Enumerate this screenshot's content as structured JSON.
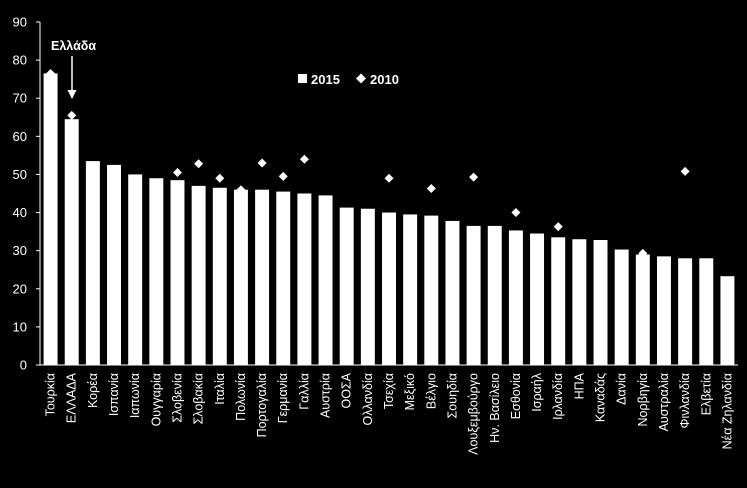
{
  "chart_data": {
    "type": "bar",
    "categories": [
      "Τουρκία",
      "ΕΛΛΑΔΑ",
      "Κορέα",
      "Ισπανία",
      "Ιαπωνία",
      "Ουγγαρία",
      "Σλοβενία",
      "Σλοβακία",
      "Ιταλία",
      "Πολωνία",
      "Πορτογαλία",
      "Γερμανία",
      "Γαλλία",
      "Αυστρία",
      "ΟΟΣΑ",
      "Ολλανδία",
      "Τσεχία",
      "Μεξικό",
      "Βέλγιο",
      "Σουηδία",
      "Λουξεμβούργο",
      "Ην. Βασίλειο",
      "Εσθονία",
      "Ισραήλ",
      "Ιρλανδία",
      "ΗΠΑ",
      "Καναδάς",
      "Δανία",
      "Νορβηγία",
      "Αυστραλία",
      "Φινλανδία",
      "Ελβετία",
      "Νέα Ζηλανδία"
    ],
    "series": [
      {
        "name": "2015",
        "kind": "bar",
        "values": [
          76.5,
          64.5,
          53.5,
          52.5,
          50,
          49,
          48.5,
          47,
          46.5,
          46,
          46,
          45.5,
          45,
          44.5,
          41.3,
          41,
          40,
          39.5,
          39.2,
          37.8,
          36.5,
          36.5,
          35.3,
          34.5,
          33.5,
          33,
          32.8,
          30.3,
          29,
          28.5,
          28,
          28,
          23.3
        ]
      },
      {
        "name": "2010",
        "kind": "marker",
        "values": [
          76.5,
          65.5,
          null,
          null,
          null,
          null,
          50.5,
          52.8,
          49,
          46,
          53,
          49.5,
          54,
          null,
          null,
          null,
          49,
          null,
          46.3,
          null,
          49.3,
          null,
          40,
          null,
          36.3,
          null,
          null,
          null,
          29.3,
          null,
          50.8,
          null,
          null
        ]
      }
    ],
    "ylim": [
      0,
      90
    ],
    "yticks": [
      0,
      10,
      20,
      30,
      40,
      50,
      60,
      70,
      80,
      90
    ],
    "legend": [
      "2015",
      "2010"
    ],
    "legend_position": "top-center",
    "annotation": {
      "text": "Ελλάδα",
      "target": "ΕΛΛΑΔΑ"
    },
    "grid": false,
    "colors": {
      "background": "#000000",
      "bar": "#ffffff",
      "marker": "#ffffff",
      "axis": "#ffffff"
    }
  }
}
